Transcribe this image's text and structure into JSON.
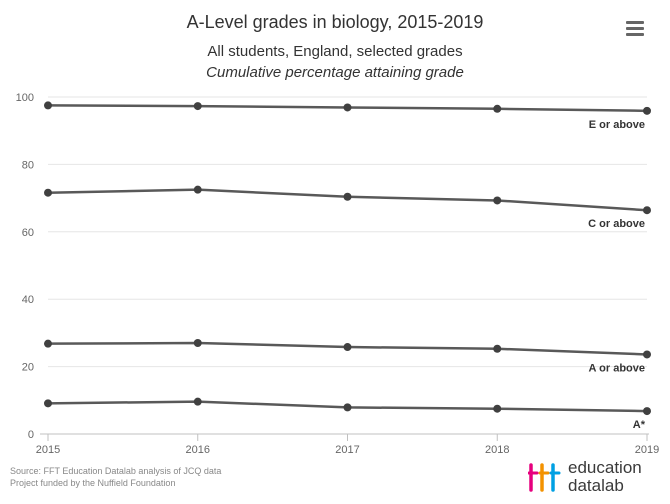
{
  "header": {
    "title": "A-Level grades in biology, 2015-2019",
    "subtitle": "All students, England, selected grades",
    "subtitle2": "Cumulative percentage attaining grade"
  },
  "footer": {
    "source_line1": "Source: FFT Education Datalab analysis of JCQ data",
    "source_line2": "Project funded by the Nuffield Foundation",
    "logo_line1": "education",
    "logo_line2": "datalab",
    "logo_colors": [
      "#e6007e",
      "#f39200",
      "#00a0e3"
    ]
  },
  "menu": {
    "icon": "hamburger-menu-icon"
  },
  "chart_data": {
    "type": "line",
    "x": [
      2015,
      2016,
      2017,
      2018,
      2019
    ],
    "ylim": [
      0,
      100
    ],
    "yticks": [
      0,
      20,
      40,
      60,
      80,
      100
    ],
    "grid": true,
    "line_color": "#595959",
    "series": [
      {
        "name": "E or above",
        "values": [
          97.5,
          97.3,
          96.9,
          96.5,
          95.9
        ]
      },
      {
        "name": "C or above",
        "values": [
          71.6,
          72.5,
          70.4,
          69.3,
          66.4
        ]
      },
      {
        "name": "A or above",
        "values": [
          26.8,
          27.0,
          25.8,
          25.3,
          23.6
        ]
      },
      {
        "name": "A*",
        "values": [
          9.1,
          9.6,
          7.9,
          7.5,
          6.8
        ]
      }
    ]
  }
}
